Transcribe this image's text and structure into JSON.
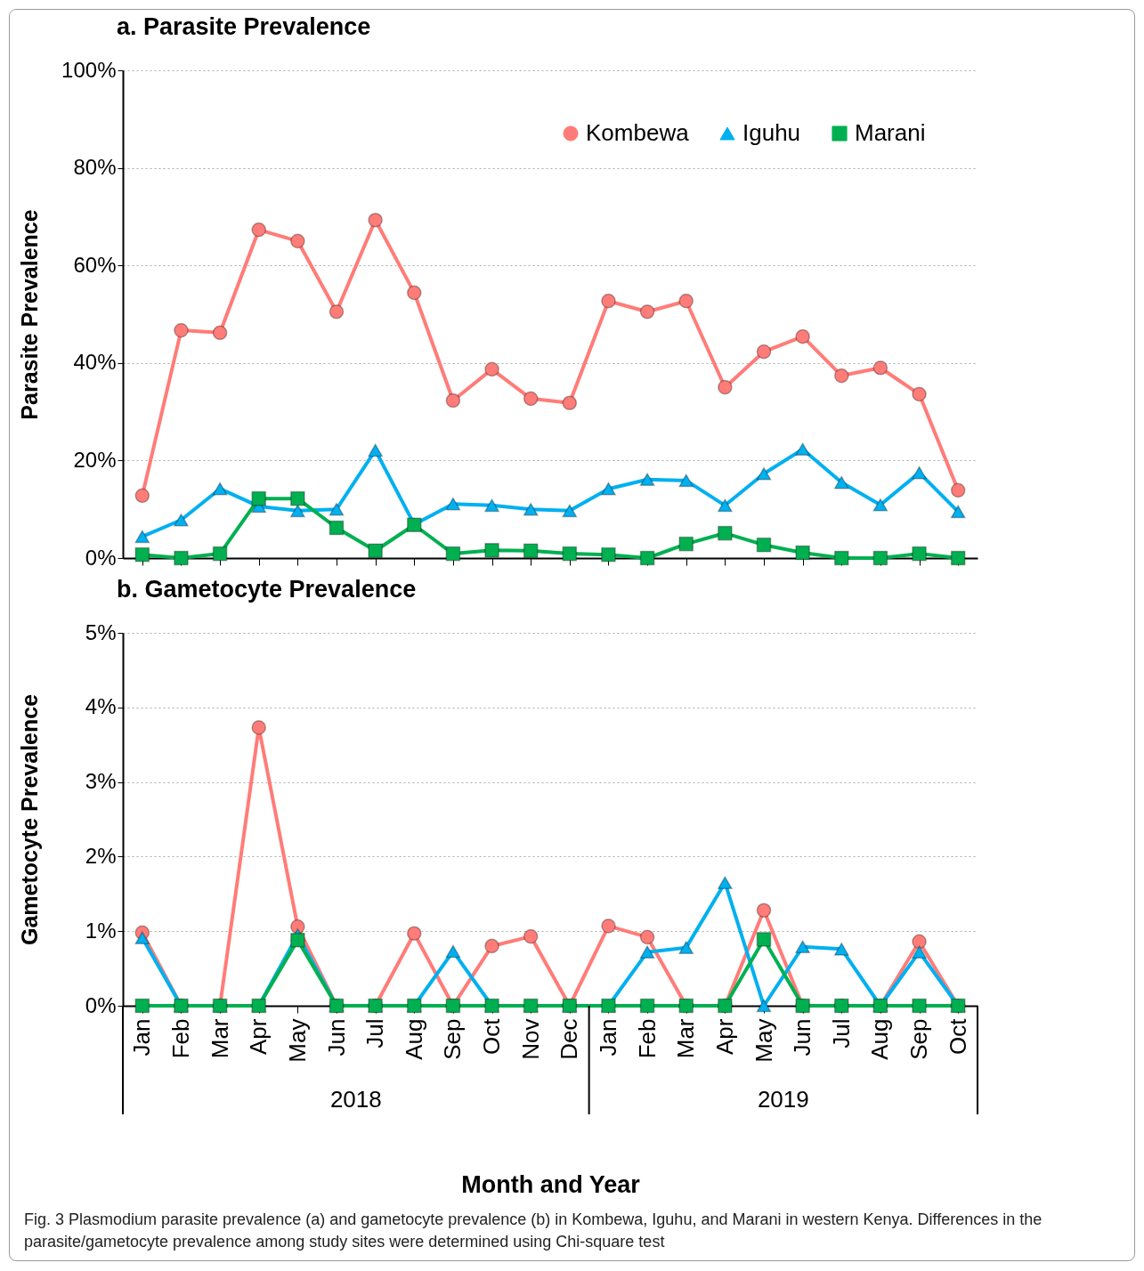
{
  "chart_data": [
    {
      "type": "line",
      "title": "a. Parasite Prevalence",
      "ylabel": "Parasite Prevalence",
      "categories": [
        "Jan",
        "Feb",
        "Mar",
        "Apr",
        "May",
        "Jun",
        "Jul",
        "Aug",
        "Sep",
        "Oct",
        "Nov",
        "Dec",
        "Jan",
        "Feb",
        "Mar",
        "Apr",
        "May",
        "Jun",
        "Jul",
        "Aug",
        "Sep",
        "Oct"
      ],
      "series": [
        {
          "name": "Kombewa",
          "color": "#ff7c78",
          "marker": "circle",
          "values": [
            12.8,
            46.7,
            46.2,
            67.3,
            65,
            50.5,
            69.3,
            54.4,
            32.3,
            38.7,
            32.7,
            31.8,
            52.7,
            50.5,
            52.7,
            35,
            42.3,
            45.4,
            37.4,
            39,
            33.6,
            13.9
          ]
        },
        {
          "name": "Iguhu",
          "color": "#00b0f0",
          "marker": "triangle",
          "values": [
            4.4,
            7.8,
            14.2,
            10.6,
            9.7,
            10,
            22.1,
            6.9,
            11.1,
            10.8,
            10,
            9.7,
            14.2,
            16.1,
            15.9,
            10.8,
            17.3,
            22.3,
            15.5,
            10.9,
            17.5,
            9.5
          ]
        },
        {
          "name": "Marani",
          "color": "#00b050",
          "marker": "square",
          "values": [
            0.7,
            0,
            0.9,
            12.2,
            12.2,
            6.2,
            1.5,
            6.8,
            0.9,
            1.6,
            1.5,
            0.9,
            0.7,
            0,
            2.9,
            5.1,
            2.7,
            1.1,
            0,
            0,
            0.9,
            0
          ]
        }
      ],
      "ylim": [
        0,
        100
      ],
      "yticks": [
        {
          "value": 0,
          "label": "0%"
        },
        {
          "value": 20,
          "label": "20%"
        },
        {
          "value": 40,
          "label": "40%"
        },
        {
          "value": 60,
          "label": "60%"
        },
        {
          "value": 80,
          "label": "80%"
        },
        {
          "value": 100,
          "label": "100%"
        }
      ],
      "grid": "y",
      "legend": "top right",
      "tick_labels": "y"
    },
    {
      "type": "line",
      "title": "b. Gametocyte Prevalence",
      "ylabel": "Gametocyte Prevalence",
      "xlabel": "Month and Year",
      "categories": [
        "Jan",
        "Feb",
        "Mar",
        "Apr",
        "May",
        "Jun",
        "Jul",
        "Aug",
        "Sep",
        "Oct",
        "Nov",
        "Dec",
        "Jan",
        "Feb",
        "Mar",
        "Apr",
        "May",
        "Jun",
        "Jul",
        "Aug",
        "Sep",
        "Oct"
      ],
      "series": [
        {
          "color": "#ff7c78",
          "marker": "circle",
          "values": [
            0.98,
            0,
            0,
            3.73,
            1.06,
            0,
            0,
            0.97,
            0,
            0.8,
            0.93,
            0,
            1.07,
            0.92,
            0,
            0,
            1.28,
            0,
            0,
            0,
            0.86,
            0
          ]
        },
        {
          "color": "#00b0f0",
          "marker": "triangle",
          "values": [
            0.91,
            0,
            0,
            0,
            0.95,
            0,
            0,
            0,
            0.73,
            0,
            0,
            0,
            0,
            0.72,
            0.78,
            1.65,
            0,
            0.79,
            0.76,
            0,
            0.72,
            0
          ]
        },
        {
          "color": "#00b050",
          "marker": "square",
          "values": [
            0,
            0,
            0,
            0,
            0.88,
            0,
            0,
            0,
            0,
            0,
            0,
            0,
            0,
            0,
            0,
            0,
            0.89,
            0,
            0,
            0,
            0,
            0
          ]
        }
      ],
      "ylim": [
        0,
        5
      ],
      "yticks": [
        {
          "value": 0,
          "label": "0%"
        },
        {
          "value": 1,
          "label": "1%"
        },
        {
          "value": 2,
          "label": "2%"
        },
        {
          "value": 3,
          "label": "3%"
        },
        {
          "value": 4,
          "label": "4%"
        },
        {
          "value": 5,
          "label": "5%"
        }
      ],
      "grid": "y",
      "annotations": [
        "2018",
        "2019",
        "Fig. 3 Plasmodium parasite prevalence (a) and gametocyte prevalence (b) in Kombewa, Iguhu, and Marani in western Kenya. Differences in the parasite/gametocyte prevalence among study sites were determined using Chi-square test"
      ]
    }
  ]
}
